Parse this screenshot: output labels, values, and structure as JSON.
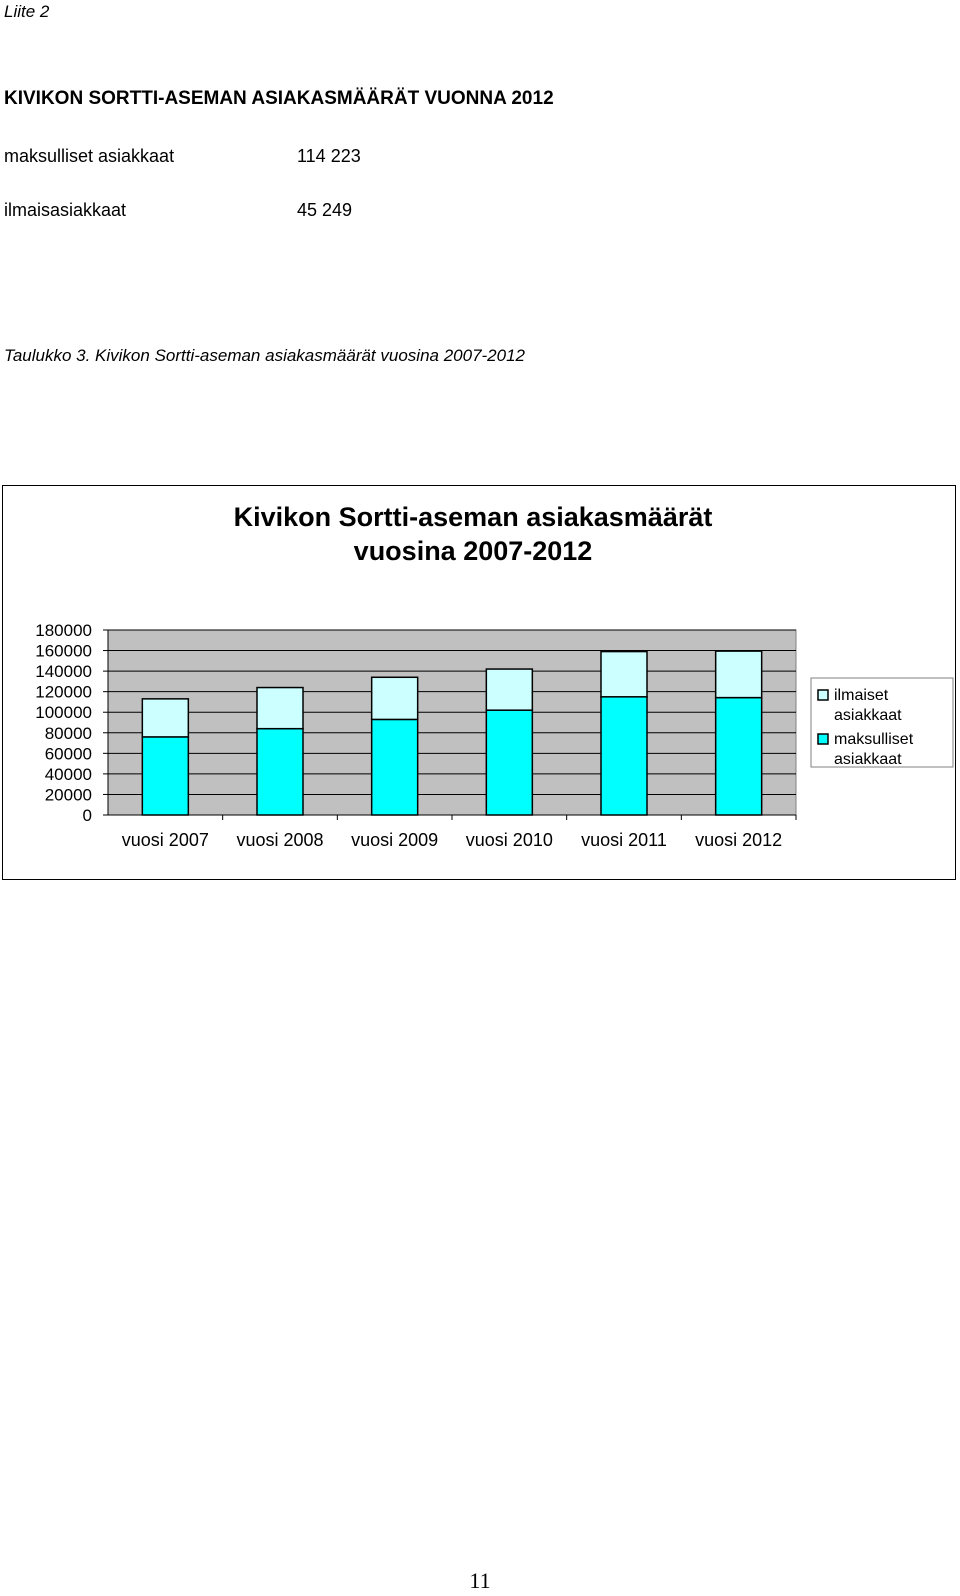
{
  "page": {
    "appendix_label": "Liite 2",
    "heading": "KIVIKON SORTTI-ASEMAN ASIAKASMÄÄRÄT VUONNA 2012",
    "stats": [
      {
        "label": "maksulliset asiakkaat",
        "value": "114 223"
      },
      {
        "label": "ilmaisasiakkaat",
        "value": "45 249"
      }
    ],
    "caption": "Taulukko 3.  Kivikon Sortti-aseman asiakasmäärät vuosina 2007-2012",
    "page_number": "11"
  },
  "chart_data": {
    "type": "bar",
    "stacked": true,
    "title": [
      "Kivikon Sortti-aseman asiakasmäärät",
      "vuosina 2007-2012"
    ],
    "categories": [
      "vuosi 2007",
      "vuosi 2008",
      "vuosi 2009",
      "vuosi 2010",
      "vuosi 2011",
      "vuosi 2012"
    ],
    "series": [
      {
        "name": "maksulliset asiakkaat",
        "color": "#00FFFF",
        "values": [
          76000,
          84000,
          93000,
          102000,
          115000,
          114223
        ]
      },
      {
        "name": "ilmaiset asiakkaat",
        "color": "#CCFFFF",
        "values": [
          37000,
          40000,
          41000,
          40000,
          44000,
          45249
        ]
      }
    ],
    "legend_order": [
      "ilmaiset asiakkaat",
      "maksulliset asiakkaat"
    ],
    "ylim": [
      0,
      180000
    ],
    "yticks": [
      0,
      20000,
      40000,
      60000,
      80000,
      100000,
      120000,
      140000,
      160000,
      180000
    ],
    "grid": true,
    "legend_position": "right",
    "plot_background": "#C0C0C0"
  }
}
